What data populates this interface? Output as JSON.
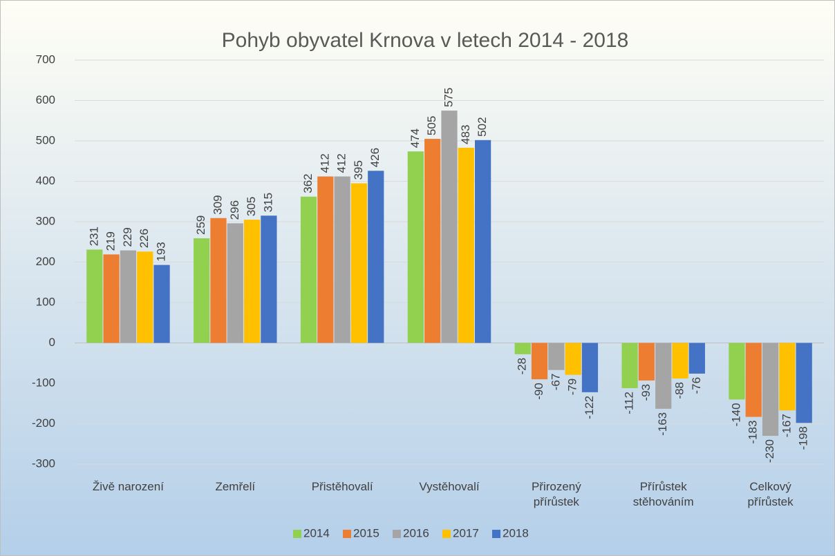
{
  "chart_data": {
    "type": "bar",
    "title": "Pohyb obyvatel Krnova v letech 2014 - 2018",
    "categories": [
      "Živě narození",
      "Zemřelí",
      "Přistěhovalí",
      "Vystěhovalí",
      "Přirozený přírůstek",
      "Přírůstek stěhováním",
      "Celkový přírůstek"
    ],
    "series": [
      {
        "name": "2014",
        "color": "#92d050",
        "values": [
          231,
          259,
          362,
          474,
          -28,
          -112,
          -140
        ]
      },
      {
        "name": "2015",
        "color": "#ed7d31",
        "values": [
          219,
          309,
          412,
          505,
          -90,
          -93,
          -183
        ]
      },
      {
        "name": "2016",
        "color": "#a5a5a5",
        "values": [
          229,
          296,
          412,
          575,
          -67,
          -163,
          -230
        ]
      },
      {
        "name": "2017",
        "color": "#ffc000",
        "values": [
          226,
          305,
          395,
          483,
          -79,
          -88,
          -167
        ]
      },
      {
        "name": "2018",
        "color": "#4472c4",
        "values": [
          193,
          315,
          426,
          502,
          -122,
          -76,
          -198
        ]
      }
    ],
    "ylim": [
      -300,
      700
    ],
    "yticks": [
      -300,
      -200,
      -100,
      0,
      100,
      200,
      300,
      400,
      500,
      600,
      700
    ],
    "grid": true,
    "legend": "bottom"
  }
}
